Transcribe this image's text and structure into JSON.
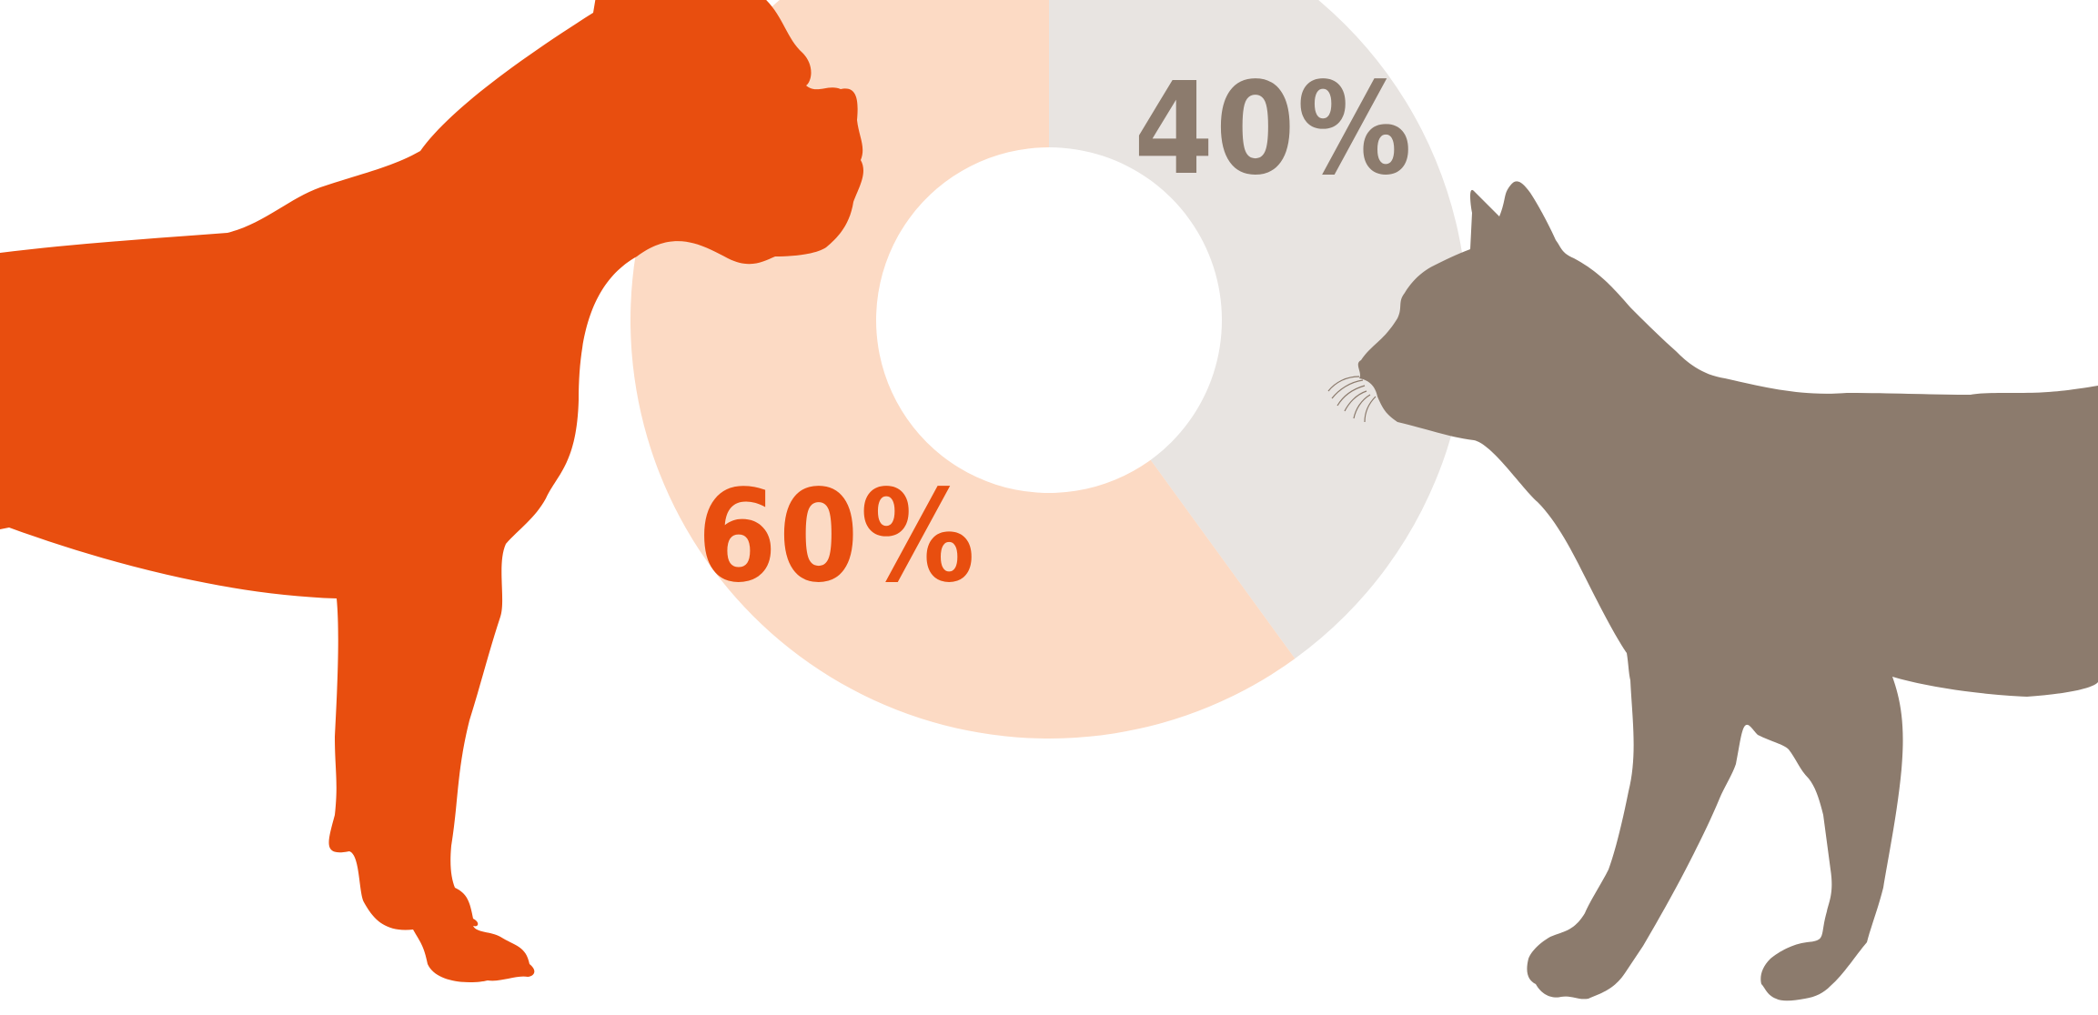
{
  "chart_data": {
    "type": "pie",
    "donut": true,
    "title": "",
    "categories": [
      "dog",
      "cat"
    ],
    "values": [
      60,
      40
    ],
    "labels": [
      "60%",
      "40%"
    ],
    "colors": [
      "#FCDAC4",
      "#E8E4E1"
    ],
    "label_colors": [
      "#E84E0F",
      "#8C7B6D"
    ],
    "legend": "none"
  },
  "illustrations": {
    "dog_color": "#E84E0F",
    "cat_color": "#8C7B6D",
    "dog_icon": "dog-silhouette-icon",
    "cat_icon": "cat-silhouette-icon"
  }
}
